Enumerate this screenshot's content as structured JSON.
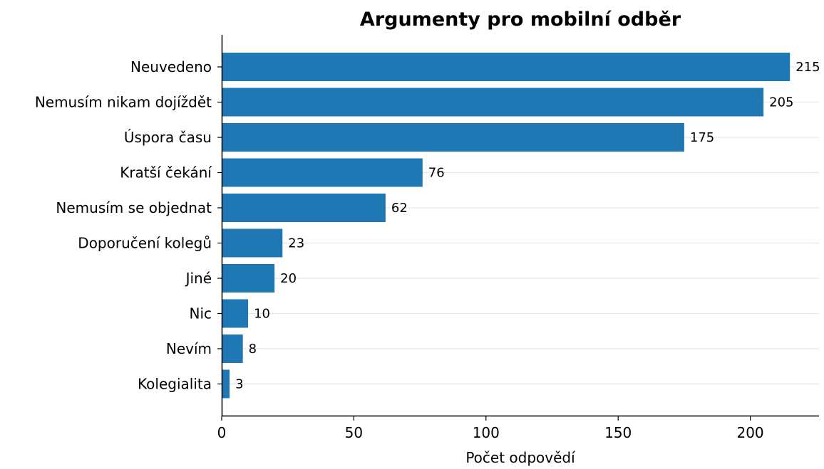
{
  "chart_data": {
    "type": "bar",
    "orientation": "horizontal",
    "title": "Argumenty pro mobilní odběr",
    "xlabel": "Počet odpovědí",
    "ylabel": "",
    "categories": [
      "Neuvedeno",
      "Nemusím nikam dojíždět",
      "Úspora času",
      "Kratší čekání",
      "Nemusím se objednat",
      "Doporučení kolegů",
      "Jiné",
      "Nic",
      "Nevím",
      "Kolegialita"
    ],
    "values": [
      215,
      205,
      175,
      76,
      62,
      23,
      20,
      10,
      8,
      3
    ],
    "value_labels": [
      "215",
      "205",
      "175",
      "76",
      "62",
      "23",
      "20",
      "10",
      "8",
      "3"
    ],
    "xlim": [
      0,
      226
    ],
    "xticks": [
      0,
      50,
      100,
      150,
      200
    ],
    "xtick_labels": [
      "0",
      "50",
      "100",
      "150",
      "200"
    ],
    "grid": "horizontal",
    "legend": "none",
    "bar_color": "#1f77b4",
    "grid_color": "#e6e6e6"
  }
}
